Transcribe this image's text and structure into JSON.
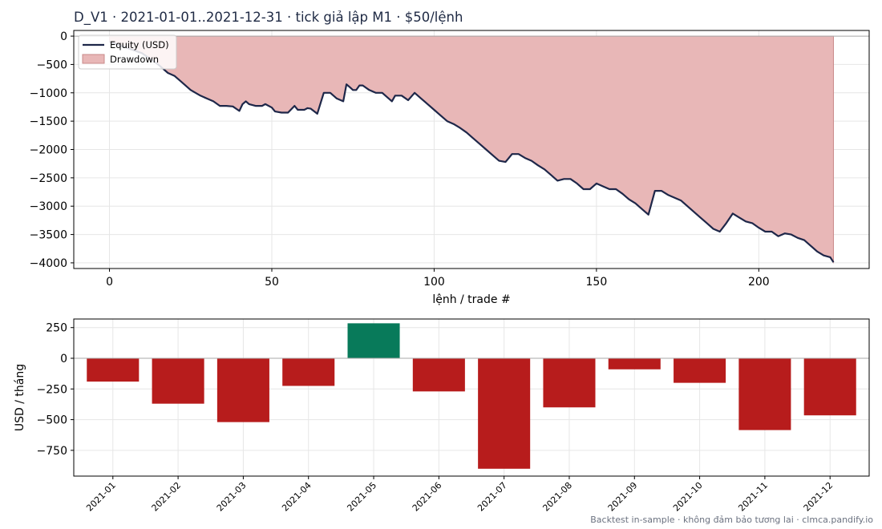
{
  "figure": {
    "title": "D_V1 · 2021-01-01..2021-12-31 · tick giả lập M1 · $50/lệnh",
    "footer": "Backtest in-sample · không đảm bảo tương lai · clmca.pandify.io"
  },
  "colors": {
    "equity_line": "#1e2749",
    "drawdown_fill": "#e8b7b7",
    "drawdown_edge": "#c98a8a",
    "bar_negative": "#b71c1c",
    "bar_positive": "#087a5a",
    "grid": "#e6e6e6",
    "zero_line": "#aaaaaa"
  },
  "chart_data": [
    {
      "type": "line",
      "xlabel": "lệnh / trade #",
      "ylabel": "",
      "xlim": [
        -11,
        234
      ],
      "ylim": [
        -4100,
        100
      ],
      "xticks": [
        0,
        50,
        100,
        150,
        200
      ],
      "yticks": [
        0,
        -500,
        -1000,
        -1500,
        -2000,
        -2500,
        -3000,
        -3500,
        -4000
      ],
      "grid": true,
      "legend_position": "top-left",
      "series": [
        {
          "name": "Equity (USD)",
          "style": "line",
          "x": [
            0,
            5,
            10,
            15,
            18,
            20,
            22,
            25,
            28,
            30,
            32,
            34,
            36,
            38,
            40,
            41,
            42,
            43,
            45,
            47,
            48,
            50,
            51,
            53,
            55,
            57,
            58,
            60,
            61,
            62,
            64,
            66,
            68,
            70,
            72,
            73,
            74,
            75,
            76,
            77,
            78,
            80,
            82,
            84,
            86,
            87,
            88,
            90,
            92,
            94,
            96,
            98,
            100,
            102,
            104,
            106,
            108,
            110,
            112,
            114,
            116,
            118,
            120,
            122,
            124,
            126,
            128,
            130,
            132,
            134,
            136,
            138,
            140,
            142,
            144,
            146,
            148,
            150,
            152,
            154,
            156,
            158,
            160,
            162,
            164,
            166,
            168,
            170,
            172,
            174,
            176,
            178,
            180,
            182,
            184,
            186,
            188,
            190,
            192,
            194,
            196,
            198,
            200,
            202,
            204,
            206,
            208,
            210,
            212,
            214,
            216,
            218,
            220,
            222,
            223
          ],
          "y": [
            -100,
            -200,
            -300,
            -500,
            -650,
            -700,
            -800,
            -950,
            -1050,
            -1100,
            -1150,
            -1230,
            -1230,
            -1240,
            -1320,
            -1200,
            -1150,
            -1200,
            -1230,
            -1230,
            -1200,
            -1260,
            -1330,
            -1350,
            -1350,
            -1230,
            -1300,
            -1300,
            -1270,
            -1280,
            -1370,
            -1000,
            -1000,
            -1100,
            -1150,
            -850,
            -900,
            -950,
            -950,
            -870,
            -870,
            -950,
            -1000,
            -1000,
            -1100,
            -1150,
            -1050,
            -1050,
            -1130,
            -1000,
            -1100,
            -1200,
            -1300,
            -1400,
            -1500,
            -1550,
            -1620,
            -1700,
            -1800,
            -1900,
            -2000,
            -2100,
            -2200,
            -2220,
            -2080,
            -2080,
            -2150,
            -2200,
            -2280,
            -2350,
            -2450,
            -2550,
            -2520,
            -2520,
            -2600,
            -2700,
            -2700,
            -2600,
            -2650,
            -2700,
            -2700,
            -2780,
            -2880,
            -2950,
            -3050,
            -3150,
            -2730,
            -2730,
            -2800,
            -2850,
            -2900,
            -3000,
            -3100,
            -3200,
            -3300,
            -3400,
            -3450,
            -3300,
            -3130,
            -3200,
            -3270,
            -3300,
            -3380,
            -3450,
            -3450,
            -3530,
            -3480,
            -3500,
            -3560,
            -3600,
            -3700,
            -3800,
            -3870,
            -3900,
            -3990
          ]
        },
        {
          "name": "Drawdown",
          "style": "area",
          "baseline": 0,
          "x_range": [
            0,
            223
          ]
        }
      ]
    },
    {
      "type": "bar",
      "xlabel": "",
      "ylabel": "USD / tháng",
      "ylim": [
        -960,
        320
      ],
      "yticks": [
        250,
        0,
        -250,
        -500,
        -750
      ],
      "grid": true,
      "categories": [
        "2021-01",
        "2021-02",
        "2021-03",
        "2021-04",
        "2021-05",
        "2021-06",
        "2021-07",
        "2021-08",
        "2021-09",
        "2021-10",
        "2021-11",
        "2021-12"
      ],
      "values": [
        -190,
        -370,
        -520,
        -225,
        285,
        -270,
        -900,
        -400,
        -90,
        -200,
        -585,
        -465
      ]
    }
  ]
}
